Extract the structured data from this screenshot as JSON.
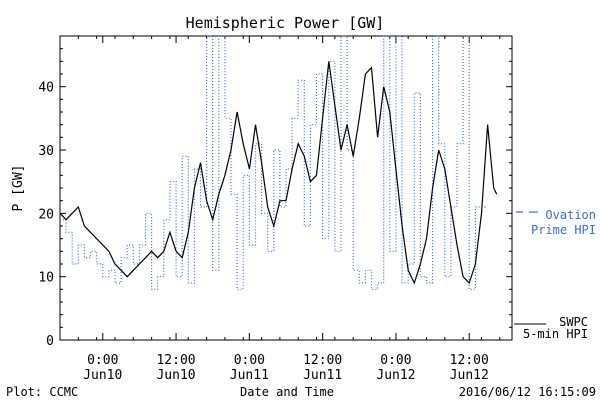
{
  "chart_data": {
    "type": "line",
    "title": "Hemispheric Power [GW]",
    "xlabel": "Date and Time",
    "ylabel": "P [GW]",
    "ylim": [
      0,
      48
    ],
    "yticks": [
      0,
      10,
      20,
      30,
      40
    ],
    "xlim": [
      "2016-06-09T17:00",
      "2016-06-12T19:00"
    ],
    "xticks": [
      {
        "t": "2016-06-10T00:00",
        "line1": "0:00",
        "line2": "Jun10"
      },
      {
        "t": "2016-06-10T12:00",
        "line1": "12:00",
        "line2": "Jun10"
      },
      {
        "t": "2016-06-11T00:00",
        "line1": "0:00",
        "line2": "Jun11"
      },
      {
        "t": "2016-06-11T12:00",
        "line1": "12:00",
        "line2": "Jun11"
      },
      {
        "t": "2016-06-12T00:00",
        "line1": "0:00",
        "line2": "Jun12"
      },
      {
        "t": "2016-06-12T12:00",
        "line1": "12:00",
        "line2": "Jun12"
      }
    ],
    "series": [
      {
        "name": "SWPC 5-min HPI",
        "label_lines": [
          "SWPC",
          "5-min HPI"
        ],
        "color": "#000000",
        "style": "solid",
        "points": [
          [
            "2016-06-09T17:00",
            20
          ],
          [
            "2016-06-09T18:00",
            19
          ],
          [
            "2016-06-09T19:00",
            20
          ],
          [
            "2016-06-09T20:00",
            21
          ],
          [
            "2016-06-09T21:00",
            18
          ],
          [
            "2016-06-09T22:00",
            17
          ],
          [
            "2016-06-09T23:00",
            16
          ],
          [
            "2016-06-10T00:00",
            15
          ],
          [
            "2016-06-10T01:00",
            14
          ],
          [
            "2016-06-10T02:00",
            12
          ],
          [
            "2016-06-10T03:00",
            11
          ],
          [
            "2016-06-10T04:00",
            10
          ],
          [
            "2016-06-10T05:00",
            11
          ],
          [
            "2016-06-10T06:00",
            12
          ],
          [
            "2016-06-10T07:00",
            13
          ],
          [
            "2016-06-10T08:00",
            14
          ],
          [
            "2016-06-10T09:00",
            13
          ],
          [
            "2016-06-10T10:00",
            14
          ],
          [
            "2016-06-10T11:00",
            17
          ],
          [
            "2016-06-10T12:00",
            14
          ],
          [
            "2016-06-10T13:00",
            13
          ],
          [
            "2016-06-10T14:00",
            17
          ],
          [
            "2016-06-10T15:00",
            24
          ],
          [
            "2016-06-10T16:00",
            28
          ],
          [
            "2016-06-10T17:00",
            22
          ],
          [
            "2016-06-10T18:00",
            19
          ],
          [
            "2016-06-10T19:00",
            23
          ],
          [
            "2016-06-10T20:00",
            26
          ],
          [
            "2016-06-10T21:00",
            30
          ],
          [
            "2016-06-10T22:00",
            36
          ],
          [
            "2016-06-10T23:00",
            31
          ],
          [
            "2016-06-11T00:00",
            27
          ],
          [
            "2016-06-11T01:00",
            34
          ],
          [
            "2016-06-11T02:00",
            28
          ],
          [
            "2016-06-11T03:00",
            21
          ],
          [
            "2016-06-11T04:00",
            18
          ],
          [
            "2016-06-11T05:00",
            22
          ],
          [
            "2016-06-11T06:00",
            22
          ],
          [
            "2016-06-11T07:00",
            27
          ],
          [
            "2016-06-11T08:00",
            31
          ],
          [
            "2016-06-11T09:00",
            29
          ],
          [
            "2016-06-11T10:00",
            25
          ],
          [
            "2016-06-11T11:00",
            26
          ],
          [
            "2016-06-11T12:00",
            35
          ],
          [
            "2016-06-11T13:00",
            44
          ],
          [
            "2016-06-11T14:00",
            37
          ],
          [
            "2016-06-11T15:00",
            30
          ],
          [
            "2016-06-11T16:00",
            34
          ],
          [
            "2016-06-11T17:00",
            29
          ],
          [
            "2016-06-11T18:00",
            35
          ],
          [
            "2016-06-11T19:00",
            42
          ],
          [
            "2016-06-11T20:00",
            43
          ],
          [
            "2016-06-11T21:00",
            32
          ],
          [
            "2016-06-11T22:00",
            40
          ],
          [
            "2016-06-11T23:00",
            36
          ],
          [
            "2016-06-12T00:00",
            27
          ],
          [
            "2016-06-12T01:00",
            18
          ],
          [
            "2016-06-12T02:00",
            11
          ],
          [
            "2016-06-12T03:00",
            9
          ],
          [
            "2016-06-12T04:00",
            12
          ],
          [
            "2016-06-12T05:00",
            16
          ],
          [
            "2016-06-12T06:00",
            24
          ],
          [
            "2016-06-12T07:00",
            30
          ],
          [
            "2016-06-12T08:00",
            27
          ],
          [
            "2016-06-12T09:00",
            21
          ],
          [
            "2016-06-12T10:00",
            15
          ],
          [
            "2016-06-12T11:00",
            10
          ],
          [
            "2016-06-12T12:00",
            9
          ],
          [
            "2016-06-12T13:00",
            12
          ],
          [
            "2016-06-12T14:00",
            20
          ],
          [
            "2016-06-12T15:00",
            34
          ],
          [
            "2016-06-12T16:00",
            24
          ],
          [
            "2016-06-12T16:30",
            23
          ]
        ]
      },
      {
        "name": "Ovation Prime HPI",
        "label_lines": [
          "Ovation",
          "Prime HPI"
        ],
        "color": "#3a6fc4",
        "style": "dotted-step",
        "points": [
          [
            "2016-06-09T17:00",
            19
          ],
          [
            "2016-06-09T18:00",
            17
          ],
          [
            "2016-06-09T19:00",
            12
          ],
          [
            "2016-06-09T20:00",
            15
          ],
          [
            "2016-06-09T21:00",
            13
          ],
          [
            "2016-06-09T22:00",
            14
          ],
          [
            "2016-06-09T23:00",
            12
          ],
          [
            "2016-06-10T00:00",
            10
          ],
          [
            "2016-06-10T01:00",
            11
          ],
          [
            "2016-06-10T02:00",
            9
          ],
          [
            "2016-06-10T03:00",
            13
          ],
          [
            "2016-06-10T04:00",
            15
          ],
          [
            "2016-06-10T05:00",
            12
          ],
          [
            "2016-06-10T06:00",
            15
          ],
          [
            "2016-06-10T07:00",
            20
          ],
          [
            "2016-06-10T08:00",
            8
          ],
          [
            "2016-06-10T09:00",
            10
          ],
          [
            "2016-06-10T10:00",
            19
          ],
          [
            "2016-06-10T11:00",
            25
          ],
          [
            "2016-06-10T12:00",
            10
          ],
          [
            "2016-06-10T13:00",
            29
          ],
          [
            "2016-06-10T14:00",
            9
          ],
          [
            "2016-06-10T15:00",
            27
          ],
          [
            "2016-06-10T16:00",
            21
          ],
          [
            "2016-06-10T17:00",
            48
          ],
          [
            "2016-06-10T18:00",
            11
          ],
          [
            "2016-06-10T19:00",
            48
          ],
          [
            "2016-06-10T20:00",
            35
          ],
          [
            "2016-06-10T21:00",
            23
          ],
          [
            "2016-06-10T22:00",
            8
          ],
          [
            "2016-06-10T23:00",
            26
          ],
          [
            "2016-06-11T00:00",
            15
          ],
          [
            "2016-06-11T01:00",
            31
          ],
          [
            "2016-06-11T02:00",
            20
          ],
          [
            "2016-06-11T03:00",
            14
          ],
          [
            "2016-06-11T04:00",
            30
          ],
          [
            "2016-06-11T05:00",
            21
          ],
          [
            "2016-06-11T06:00",
            27
          ],
          [
            "2016-06-11T07:00",
            35
          ],
          [
            "2016-06-11T08:00",
            41
          ],
          [
            "2016-06-11T09:00",
            18
          ],
          [
            "2016-06-11T10:00",
            34
          ],
          [
            "2016-06-11T11:00",
            42
          ],
          [
            "2016-06-11T12:00",
            16
          ],
          [
            "2016-06-11T13:00",
            44
          ],
          [
            "2016-06-11T14:00",
            14
          ],
          [
            "2016-06-11T15:00",
            48
          ],
          [
            "2016-06-11T16:00",
            30
          ],
          [
            "2016-06-11T17:00",
            11
          ],
          [
            "2016-06-11T18:00",
            9
          ],
          [
            "2016-06-11T19:00",
            11
          ],
          [
            "2016-06-11T20:00",
            8
          ],
          [
            "2016-06-11T21:00",
            9
          ],
          [
            "2016-06-11T22:00",
            48
          ],
          [
            "2016-06-11T23:00",
            14
          ],
          [
            "2016-06-12T00:00",
            48
          ],
          [
            "2016-06-12T01:00",
            9
          ],
          [
            "2016-06-12T02:00",
            12
          ],
          [
            "2016-06-12T03:00",
            39
          ],
          [
            "2016-06-12T04:00",
            10
          ],
          [
            "2016-06-12T05:00",
            9
          ],
          [
            "2016-06-12T06:00",
            48
          ],
          [
            "2016-06-12T07:00",
            31
          ],
          [
            "2016-06-12T08:00",
            10
          ],
          [
            "2016-06-12T09:00",
            21
          ],
          [
            "2016-06-12T10:00",
            31
          ],
          [
            "2016-06-12T11:00",
            48
          ],
          [
            "2016-06-12T12:00",
            8
          ],
          [
            "2016-06-12T13:00",
            21
          ],
          [
            "2016-06-12T14:00",
            21
          ]
        ]
      }
    ]
  },
  "footer": {
    "left": "Plot: CCMC",
    "center": "Date and Time",
    "right": "2016/06/12 16:15:09"
  }
}
